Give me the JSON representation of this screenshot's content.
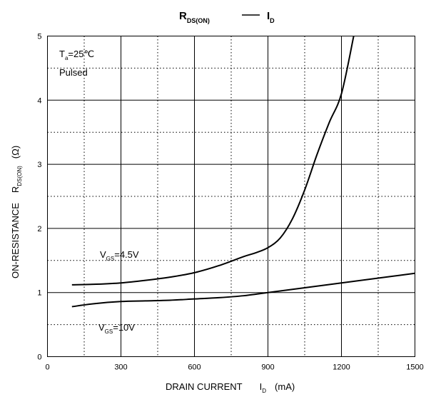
{
  "chart_data": {
    "type": "line",
    "title": {
      "left_main": "R",
      "left_sub": "DS(ON)",
      "right_main": "I",
      "right_sub": "D"
    },
    "xlabel": {
      "text": "DRAIN CURRENT",
      "symbol_main": "I",
      "symbol_sub": "D",
      "unit": "(mA)"
    },
    "ylabel": {
      "text": "ON-RESISTANCE",
      "symbol_main": "R",
      "symbol_sub": "DS(ON)",
      "unit": "(Ω)"
    },
    "xlim": [
      0,
      1500
    ],
    "ylim": [
      0,
      5
    ],
    "x_ticks": [
      0,
      300,
      600,
      900,
      1200,
      1500
    ],
    "y_ticks": [
      0,
      1,
      2,
      3,
      4,
      5
    ],
    "grid": {
      "major": "solid",
      "minor": "dotted"
    },
    "conditions": {
      "temp_main": "T",
      "temp_sub": "a",
      "temp_value": "=25℃",
      "mode": "Pulsed"
    },
    "series": [
      {
        "label_main": "V",
        "label_sub": "GS",
        "label_value": "=4.5V",
        "x": [
          100,
          200,
          300,
          400,
          500,
          600,
          700,
          800,
          850,
          900,
          950,
          1000,
          1050,
          1100,
          1150,
          1200,
          1250
        ],
        "y": [
          1.12,
          1.13,
          1.15,
          1.19,
          1.24,
          1.31,
          1.42,
          1.56,
          1.62,
          1.7,
          1.85,
          2.15,
          2.6,
          3.15,
          3.65,
          4.1,
          5.0
        ]
      },
      {
        "label_main": "V",
        "label_sub": "GS",
        "label_value": "=10V",
        "x": [
          100,
          200,
          300,
          400,
          500,
          600,
          700,
          800,
          900,
          1000,
          1100,
          1200,
          1300,
          1400,
          1500
        ],
        "y": [
          0.78,
          0.83,
          0.86,
          0.87,
          0.88,
          0.9,
          0.92,
          0.95,
          1.0,
          1.05,
          1.1,
          1.15,
          1.2,
          1.25,
          1.3
        ]
      }
    ]
  }
}
